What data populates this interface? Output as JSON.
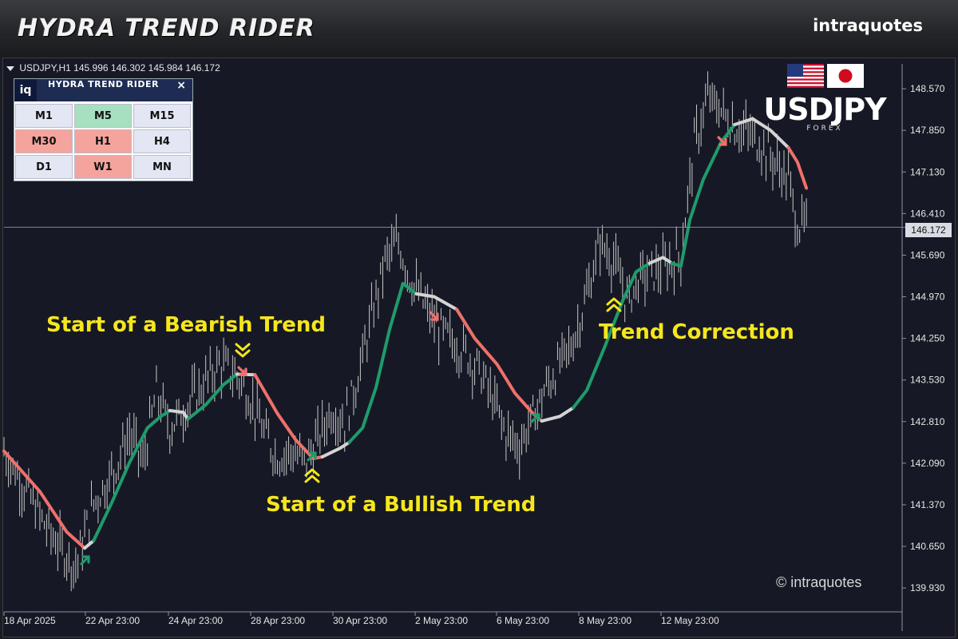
{
  "banner": {
    "title": "HYDRA TREND RIDER",
    "brand": "intraquotes"
  },
  "symbol": {
    "name": "USDJPY,H1",
    "open": "145.996",
    "high": "146.302",
    "low": "145.984",
    "close": "146.172"
  },
  "panel": {
    "logo": "iq",
    "title": "HYDRA TREND RIDER",
    "close": "×",
    "timeframes": [
      {
        "label": "M1",
        "state": "neutral"
      },
      {
        "label": "M5",
        "state": "bullish"
      },
      {
        "label": "M15",
        "state": "neutral"
      },
      {
        "label": "M30",
        "state": "bearish"
      },
      {
        "label": "H1",
        "state": "bearish"
      },
      {
        "label": "H4",
        "state": "neutral"
      },
      {
        "label": "D1",
        "state": "neutral"
      },
      {
        "label": "W1",
        "state": "bearish"
      },
      {
        "label": "MN",
        "state": "neutral"
      }
    ]
  },
  "pair": {
    "title": "USDJPY",
    "subtitle": "FOREX",
    "flags": [
      "us-flag-icon",
      "japan-flag-icon"
    ]
  },
  "annotations": {
    "bearish": "Start of a Bearish Trend",
    "bullish": "Start of a Bullish Trend",
    "correction": "Trend Correction"
  },
  "watermark": "© intraquotes",
  "colors": {
    "bull": "#1f9b6c",
    "bear": "#f0706a",
    "neutral": "#d4d4d4",
    "annot": "#f6e61d",
    "bars": "#c8c8c8"
  },
  "chart_data": {
    "type": "line",
    "y_ticks": [
      "148.570",
      "147.850",
      "147.130",
      "146.410",
      "145.690",
      "144.970",
      "144.250",
      "143.530",
      "142.810",
      "142.090",
      "141.370",
      "140.650",
      "139.930"
    ],
    "x_ticks": [
      "18 Apr 2025",
      "22 Apr 23:00",
      "24 Apr 23:00",
      "28 Apr 23:00",
      "30 Apr 23:00",
      "2 May 23:00",
      "6 May 23:00",
      "8 May 23:00",
      "12 May 23:00"
    ],
    "current_price": "146.172",
    "ylim": [
      139.6,
      149.0
    ],
    "price_path": [
      [
        0,
        142.3
      ],
      [
        5,
        141.6
      ],
      [
        10,
        140.9
      ],
      [
        16,
        140.3
      ],
      [
        20,
        141.4
      ],
      [
        24,
        141.9
      ],
      [
        28,
        142.6
      ],
      [
        31,
        142.1
      ],
      [
        34,
        143.3
      ],
      [
        37,
        142.7
      ],
      [
        40,
        143.0
      ],
      [
        44,
        143.4
      ],
      [
        48,
        143.8
      ],
      [
        52,
        143.6
      ],
      [
        55,
        143.2
      ],
      [
        58,
        142.6
      ],
      [
        61,
        142.2
      ],
      [
        64,
        142.3
      ],
      [
        67,
        142.1
      ],
      [
        70,
        142.5
      ],
      [
        73,
        143.0
      ],
      [
        76,
        142.8
      ],
      [
        79,
        143.6
      ],
      [
        82,
        144.6
      ],
      [
        85,
        145.6
      ],
      [
        88,
        145.9
      ],
      [
        91,
        145.2
      ],
      [
        94,
        144.8
      ],
      [
        97,
        144.4
      ],
      [
        100,
        144.2
      ],
      [
        103,
        144.0
      ],
      [
        106,
        143.7
      ],
      [
        109,
        143.2
      ],
      [
        112,
        142.6
      ],
      [
        115,
        142.4
      ],
      [
        118,
        142.9
      ],
      [
        121,
        143.4
      ],
      [
        124,
        143.8
      ],
      [
        127,
        144.2
      ],
      [
        130,
        145.0
      ],
      [
        133,
        145.9
      ],
      [
        136,
        145.6
      ],
      [
        139,
        144.9
      ],
      [
        142,
        145.3
      ],
      [
        145,
        145.4
      ],
      [
        148,
        145.5
      ],
      [
        151,
        145.7
      ],
      [
        154,
        147.6
      ],
      [
        157,
        148.4
      ],
      [
        160,
        148.2
      ],
      [
        163,
        147.9
      ],
      [
        166,
        147.8
      ],
      [
        169,
        147.6
      ],
      [
        172,
        147.3
      ],
      [
        175,
        147.0
      ],
      [
        177,
        146.2
      ],
      [
        179,
        146.2
      ]
    ],
    "trend_line": [
      {
        "state": "bearish",
        "points": [
          [
            0,
            142.3
          ],
          [
            8,
            141.6
          ],
          [
            14,
            140.9
          ],
          [
            18,
            140.62
          ]
        ]
      },
      {
        "state": "neutral",
        "points": [
          [
            18,
            140.62
          ],
          [
            20,
            140.75
          ]
        ]
      },
      {
        "state": "bullish",
        "points": [
          [
            20,
            140.75
          ],
          [
            24,
            141.4
          ],
          [
            28,
            142.1
          ],
          [
            32,
            142.7
          ],
          [
            35,
            142.9
          ],
          [
            37,
            143.0
          ]
        ]
      },
      {
        "state": "neutral",
        "points": [
          [
            37,
            143.0
          ],
          [
            40,
            142.97
          ],
          [
            41,
            142.85
          ]
        ]
      },
      {
        "state": "bullish",
        "points": [
          [
            41,
            142.85
          ],
          [
            45,
            143.1
          ],
          [
            49,
            143.45
          ],
          [
            52,
            143.63
          ]
        ]
      },
      {
        "state": "neutral",
        "points": [
          [
            52,
            143.63
          ],
          [
            56,
            143.62
          ]
        ]
      },
      {
        "state": "bearish",
        "points": [
          [
            56,
            143.62
          ],
          [
            61,
            142.95
          ],
          [
            65,
            142.5
          ],
          [
            69,
            142.17
          ],
          [
            71,
            142.2
          ]
        ]
      },
      {
        "state": "neutral",
        "points": [
          [
            71,
            142.2
          ],
          [
            75,
            142.35
          ],
          [
            77,
            142.45
          ]
        ]
      },
      {
        "state": "bullish",
        "points": [
          [
            77,
            142.45
          ],
          [
            80,
            142.7
          ],
          [
            83,
            143.4
          ],
          [
            86,
            144.4
          ],
          [
            89,
            145.2
          ],
          [
            92,
            145.02
          ]
        ]
      },
      {
        "state": "neutral",
        "points": [
          [
            92,
            145.02
          ],
          [
            96,
            144.97
          ],
          [
            101,
            144.75
          ]
        ]
      },
      {
        "state": "bearish",
        "points": [
          [
            101,
            144.75
          ],
          [
            105,
            144.25
          ],
          [
            110,
            143.8
          ],
          [
            114,
            143.3
          ],
          [
            118,
            142.95
          ],
          [
            120,
            142.82
          ]
        ]
      },
      {
        "state": "neutral",
        "points": [
          [
            120,
            142.82
          ],
          [
            124,
            142.9
          ],
          [
            127,
            143.05
          ]
        ]
      },
      {
        "state": "bullish",
        "points": [
          [
            127,
            143.05
          ],
          [
            130,
            143.35
          ],
          [
            134,
            144.1
          ],
          [
            138,
            144.9
          ],
          [
            141,
            145.4
          ],
          [
            144,
            145.55
          ]
        ]
      },
      {
        "state": "neutral",
        "points": [
          [
            144,
            145.55
          ],
          [
            147,
            145.65
          ],
          [
            149,
            145.55
          ]
        ]
      },
      {
        "state": "bullish",
        "points": [
          [
            149,
            145.55
          ],
          [
            151,
            145.5
          ],
          [
            153,
            146.3
          ],
          [
            156,
            147.0
          ],
          [
            160,
            147.65
          ],
          [
            163,
            147.95
          ]
        ]
      },
      {
        "state": "neutral",
        "points": [
          [
            163,
            147.95
          ],
          [
            167,
            148.05
          ],
          [
            171,
            147.85
          ],
          [
            175,
            147.55
          ]
        ]
      },
      {
        "state": "bearish",
        "points": [
          [
            175,
            147.55
          ],
          [
            177,
            147.3
          ],
          [
            179,
            146.85
          ]
        ]
      }
    ]
  }
}
